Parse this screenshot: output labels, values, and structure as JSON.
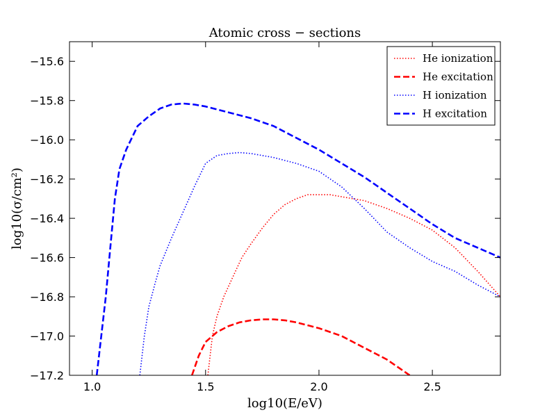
{
  "chart_data": {
    "type": "line",
    "title": "Atomic cross − sections",
    "xlabel": "log10(E/eV)",
    "ylabel": "log10(σ/cm²)",
    "xlim": [
      0.9,
      2.8
    ],
    "ylim": [
      -17.2,
      -15.5
    ],
    "xticks": [
      1.0,
      1.5,
      2.0,
      2.5
    ],
    "xtick_labels": [
      "1.0",
      "1.5",
      "2.0",
      "2.5"
    ],
    "yticks": [
      -15.6,
      -15.8,
      -16.0,
      -16.2,
      -16.4,
      -16.6,
      -16.8,
      -17.0,
      -17.2
    ],
    "ytick_labels": [
      "−15.6",
      "−15.8",
      "−16.0",
      "−16.2",
      "−16.4",
      "−16.6",
      "−16.8",
      "−17.0",
      "−17.2"
    ],
    "grid": false,
    "legend_position": "top-right",
    "series": [
      {
        "name": "He ionization",
        "color": "#ff0000",
        "style": "dotted",
        "x": [
          1.51,
          1.53,
          1.55,
          1.58,
          1.62,
          1.66,
          1.7,
          1.75,
          1.8,
          1.85,
          1.9,
          1.95,
          2.0,
          2.05,
          2.1,
          2.2,
          2.3,
          2.4,
          2.5,
          2.6,
          2.7,
          2.8
        ],
        "y": [
          -17.2,
          -17.0,
          -16.9,
          -16.8,
          -16.7,
          -16.6,
          -16.53,
          -16.45,
          -16.38,
          -16.33,
          -16.3,
          -16.28,
          -16.28,
          -16.28,
          -16.29,
          -16.31,
          -16.35,
          -16.4,
          -16.46,
          -16.55,
          -16.67,
          -16.8
        ]
      },
      {
        "name": "He excitation",
        "color": "#ff0000",
        "style": "dashed",
        "x": [
          1.44,
          1.47,
          1.5,
          1.55,
          1.6,
          1.65,
          1.7,
          1.75,
          1.8,
          1.85,
          1.9,
          1.95,
          2.0,
          2.05,
          2.1,
          2.15,
          2.2,
          2.25,
          2.3,
          2.35,
          2.4
        ],
        "y": [
          -17.2,
          -17.1,
          -17.03,
          -16.98,
          -16.95,
          -16.93,
          -16.92,
          -16.915,
          -16.915,
          -16.92,
          -16.93,
          -16.945,
          -16.96,
          -16.98,
          -17.0,
          -17.03,
          -17.06,
          -17.09,
          -17.12,
          -17.16,
          -17.2
        ]
      },
      {
        "name": "H ionization",
        "color": "#0000ff",
        "style": "dotted",
        "x": [
          1.21,
          1.23,
          1.25,
          1.28,
          1.3,
          1.35,
          1.4,
          1.45,
          1.5,
          1.55,
          1.6,
          1.65,
          1.7,
          1.8,
          1.9,
          2.0,
          2.1,
          2.2,
          2.3,
          2.4,
          2.5,
          2.6,
          2.7,
          2.8
        ],
        "y": [
          -17.2,
          -17.0,
          -16.85,
          -16.72,
          -16.64,
          -16.5,
          -16.37,
          -16.24,
          -16.12,
          -16.08,
          -16.07,
          -16.065,
          -16.07,
          -16.09,
          -16.12,
          -16.16,
          -16.24,
          -16.35,
          -16.47,
          -16.55,
          -16.62,
          -16.67,
          -16.74,
          -16.8
        ]
      },
      {
        "name": "H excitation",
        "color": "#0000ff",
        "style": "dashed",
        "x": [
          1.02,
          1.04,
          1.06,
          1.08,
          1.1,
          1.12,
          1.15,
          1.2,
          1.25,
          1.3,
          1.35,
          1.4,
          1.45,
          1.5,
          1.6,
          1.7,
          1.8,
          1.9,
          2.0,
          2.1,
          2.2,
          2.3,
          2.4,
          2.5,
          2.6,
          2.7,
          2.8
        ],
        "y": [
          -17.2,
          -17.0,
          -16.8,
          -16.55,
          -16.3,
          -16.15,
          -16.05,
          -15.93,
          -15.88,
          -15.84,
          -15.82,
          -15.815,
          -15.82,
          -15.83,
          -15.86,
          -15.89,
          -15.93,
          -15.99,
          -16.05,
          -16.12,
          -16.19,
          -16.27,
          -16.35,
          -16.43,
          -16.5,
          -16.55,
          -16.6
        ]
      }
    ]
  }
}
